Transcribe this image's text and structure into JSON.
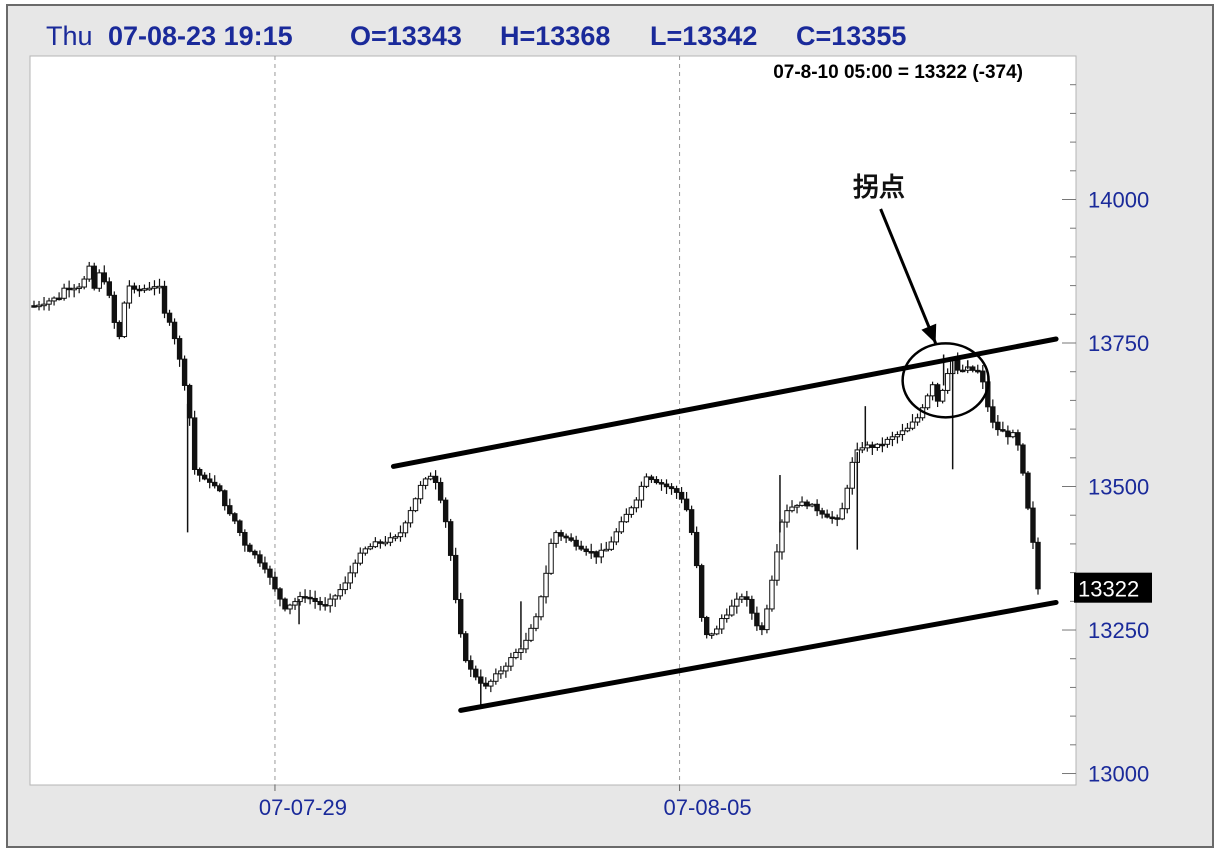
{
  "header": {
    "day": "Thu",
    "datetime": "07-08-23 19:15",
    "open": "O=13343",
    "high": "H=13368",
    "low": "L=13342",
    "close": "C=13355"
  },
  "cursor_readout": "07-8-10 05:00 = 13322 (-374)",
  "annotation": {
    "label": "拐点"
  },
  "last_price": "13322",
  "chart_data": {
    "type": "candlestick",
    "title": "",
    "xlabel": "",
    "ylabel": "",
    "ylim": [
      12980,
      14250
    ],
    "y_ticks": [
      {
        "value": 13000,
        "label": "13000"
      },
      {
        "value": 13250,
        "label": "13250"
      },
      {
        "value": 13500,
        "label": "13500"
      },
      {
        "value": 13750,
        "label": "13750"
      },
      {
        "value": 14000,
        "label": "14000"
      }
    ],
    "x_range": [
      0,
      100
    ],
    "x_date_marks": [
      {
        "x": 24,
        "label": "07-07-29"
      },
      {
        "x": 64.3,
        "label": "07-08-05"
      }
    ],
    "grid": {
      "horizontal": false,
      "vertical_at_date_marks": true
    },
    "close_path": [
      [
        0,
        13815
      ],
      [
        2.5,
        13830
      ],
      [
        3,
        13845
      ],
      [
        4.5,
        13850
      ],
      [
        5,
        13860
      ],
      [
        5.5,
        13880
      ],
      [
        6,
        13845
      ],
      [
        6.5,
        13870
      ],
      [
        7,
        13860
      ],
      [
        7.5,
        13830
      ],
      [
        8,
        13785
      ],
      [
        8.5,
        13760
      ],
      [
        9,
        13820
      ],
      [
        9.5,
        13850
      ],
      [
        10,
        13840
      ],
      [
        11,
        13845
      ],
      [
        12,
        13850
      ],
      [
        12.5,
        13845
      ],
      [
        13,
        13800
      ],
      [
        13.5,
        13790
      ],
      [
        14,
        13760
      ],
      [
        14.5,
        13720
      ],
      [
        15,
        13680
      ],
      [
        15.5,
        13620
      ],
      [
        16,
        13530
      ],
      [
        16.5,
        13520
      ],
      [
        17,
        13510
      ],
      [
        17.5,
        13510
      ],
      [
        18,
        13500
      ],
      [
        18.5,
        13490
      ],
      [
        19,
        13470
      ],
      [
        19.5,
        13450
      ],
      [
        20,
        13440
      ],
      [
        20.5,
        13420
      ],
      [
        21,
        13400
      ],
      [
        21.5,
        13390
      ],
      [
        22,
        13380
      ],
      [
        22.5,
        13370
      ],
      [
        23,
        13360
      ],
      [
        24,
        13320
      ],
      [
        25,
        13290
      ],
      [
        26,
        13300
      ],
      [
        27,
        13310
      ],
      [
        28,
        13300
      ],
      [
        29,
        13290
      ],
      [
        30,
        13310
      ],
      [
        31,
        13330
      ],
      [
        32,
        13370
      ],
      [
        33,
        13390
      ],
      [
        34,
        13400
      ],
      [
        35,
        13405
      ],
      [
        36,
        13410
      ],
      [
        36.5,
        13420
      ],
      [
        37,
        13440
      ],
      [
        37.5,
        13460
      ],
      [
        38,
        13480
      ],
      [
        38.5,
        13500
      ],
      [
        39,
        13510
      ],
      [
        39.5,
        13520
      ],
      [
        40,
        13510
      ],
      [
        40.5,
        13480
      ],
      [
        41,
        13440
      ],
      [
        41.5,
        13380
      ],
      [
        42,
        13300
      ],
      [
        42.5,
        13240
      ],
      [
        43,
        13200
      ],
      [
        43.5,
        13180
      ],
      [
        44,
        13170
      ],
      [
        44.5,
        13160
      ],
      [
        45,
        13150
      ],
      [
        45.5,
        13160
      ],
      [
        46,
        13170
      ],
      [
        46.5,
        13180
      ],
      [
        47,
        13190
      ],
      [
        47.5,
        13200
      ],
      [
        48,
        13210
      ],
      [
        49,
        13230
      ],
      [
        50,
        13270
      ],
      [
        50.5,
        13310
      ],
      [
        51,
        13350
      ],
      [
        51.5,
        13400
      ],
      [
        52,
        13420
      ],
      [
        53,
        13410
      ],
      [
        54,
        13400
      ],
      [
        55,
        13390
      ],
      [
        56,
        13380
      ],
      [
        57,
        13390
      ],
      [
        58,
        13420
      ],
      [
        59,
        13450
      ],
      [
        60,
        13480
      ],
      [
        60.5,
        13500
      ],
      [
        61,
        13520
      ],
      [
        62,
        13510
      ],
      [
        63,
        13500
      ],
      [
        64,
        13490
      ],
      [
        64.5,
        13480
      ],
      [
        65,
        13460
      ],
      [
        65.5,
        13420
      ],
      [
        66,
        13360
      ],
      [
        66.5,
        13270
      ],
      [
        67,
        13240
      ],
      [
        68,
        13250
      ],
      [
        68.5,
        13270
      ],
      [
        69,
        13280
      ],
      [
        69.5,
        13290
      ],
      [
        70,
        13300
      ],
      [
        70.5,
        13310
      ],
      [
        71,
        13300
      ],
      [
        71.5,
        13280
      ],
      [
        72,
        13260
      ],
      [
        72.5,
        13250
      ],
      [
        73,
        13290
      ],
      [
        73.5,
        13340
      ],
      [
        74,
        13390
      ],
      [
        74.5,
        13440
      ],
      [
        75,
        13460
      ],
      [
        76,
        13470
      ],
      [
        77,
        13470
      ],
      [
        78,
        13460
      ],
      [
        79,
        13450
      ],
      [
        80,
        13440
      ],
      [
        80.5,
        13460
      ],
      [
        81,
        13500
      ],
      [
        81.5,
        13540
      ],
      [
        82,
        13560
      ],
      [
        82.5,
        13570
      ],
      [
        83,
        13570
      ],
      [
        84,
        13570
      ],
      [
        85,
        13580
      ],
      [
        86,
        13590
      ],
      [
        87,
        13600
      ],
      [
        88,
        13620
      ],
      [
        88.5,
        13640
      ],
      [
        89,
        13660
      ],
      [
        89.5,
        13680
      ],
      [
        90,
        13650
      ],
      [
        90.5,
        13670
      ],
      [
        91,
        13700
      ],
      [
        91.5,
        13720
      ],
      [
        92,
        13700
      ],
      [
        93,
        13705
      ],
      [
        94,
        13700
      ],
      [
        94.5,
        13680
      ],
      [
        95,
        13640
      ],
      [
        95.5,
        13610
      ],
      [
        96,
        13600
      ],
      [
        97,
        13590
      ],
      [
        97.5,
        13590
      ],
      [
        98,
        13570
      ],
      [
        98.5,
        13520
      ],
      [
        99,
        13460
      ],
      [
        99.5,
        13400
      ],
      [
        100,
        13322
      ]
    ],
    "wick_spikes": [
      {
        "x": 15.3,
        "low": 13420
      },
      {
        "x": 26.4,
        "low": 13260
      },
      {
        "x": 44.5,
        "low": 13120
      },
      {
        "x": 48.5,
        "high": 13300
      },
      {
        "x": 74.3,
        "high": 13520
      },
      {
        "x": 82.0,
        "low": 13390
      },
      {
        "x": 82.8,
        "high": 13640
      },
      {
        "x": 90.6,
        "high": 13730
      },
      {
        "x": 91.5,
        "low": 13530
      },
      {
        "x": 93.0,
        "high": 13720
      }
    ],
    "trend_lines": [
      {
        "name": "upper-channel",
        "x1": 35.8,
        "y1": 13535,
        "x2": 101.8,
        "y2": 13757
      },
      {
        "name": "lower-channel",
        "x1": 42.5,
        "y1": 13110,
        "x2": 101.8,
        "y2": 13298
      }
    ],
    "annotation_circle": {
      "x": 90.8,
      "y": 13685
    },
    "last_price_value": 13322
  }
}
